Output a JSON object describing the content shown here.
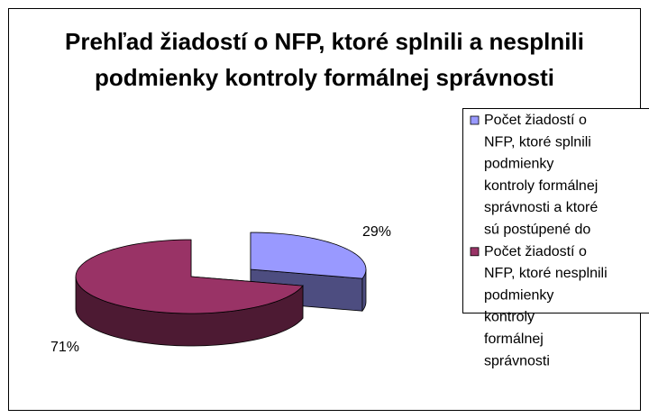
{
  "chart_data": {
    "type": "pie3d",
    "title": "Prehľad žiadostí o NFP, ktoré splnili a nesplnili podmienky kontroly formálnej správnosti",
    "series": [
      {
        "name": "Počet žiadostí o NFP, ktoré splnili podmienky kontroly formálnej správnosti a ktoré sú postúpené do",
        "color": "#9999ff",
        "values": [
          29
        ],
        "value_labels": [
          "29%"
        ]
      },
      {
        "name": "Počet žiadostí o NFP, ktoré nesplnili podmienky kontroly formálnej správnosti",
        "color": "#993366",
        "values": [
          71
        ],
        "value_labels": [
          "71%"
        ]
      }
    ],
    "legend": "right"
  }
}
